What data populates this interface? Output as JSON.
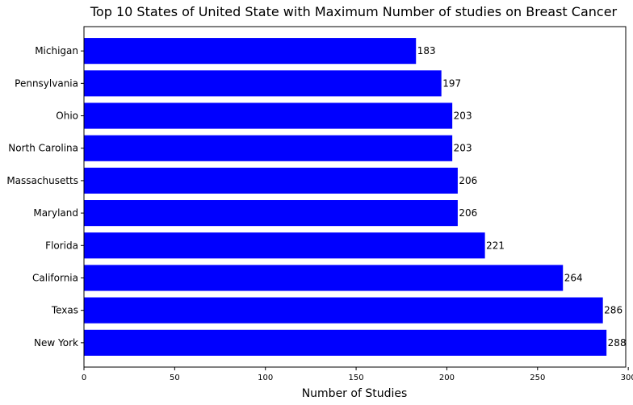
{
  "chart_data": {
    "type": "bar",
    "orientation": "horizontal",
    "title": "Top 10 States of United State with Maximum Number of studies on Breast Cancer",
    "xlabel": "Number of Studies",
    "ylabel": "",
    "xlim": [
      0,
      300
    ],
    "xticks": [
      0,
      50,
      100,
      150,
      200,
      250,
      300
    ],
    "grid": false,
    "bar_color": "#0000ff",
    "categories": [
      "Michigan",
      "Pennsylvania",
      "Ohio",
      "North Carolina",
      "Massachusetts",
      "Maryland",
      "Florida",
      "California",
      "Texas",
      "New York"
    ],
    "values": [
      183,
      197,
      203,
      203,
      206,
      206,
      221,
      264,
      286,
      288
    ]
  }
}
